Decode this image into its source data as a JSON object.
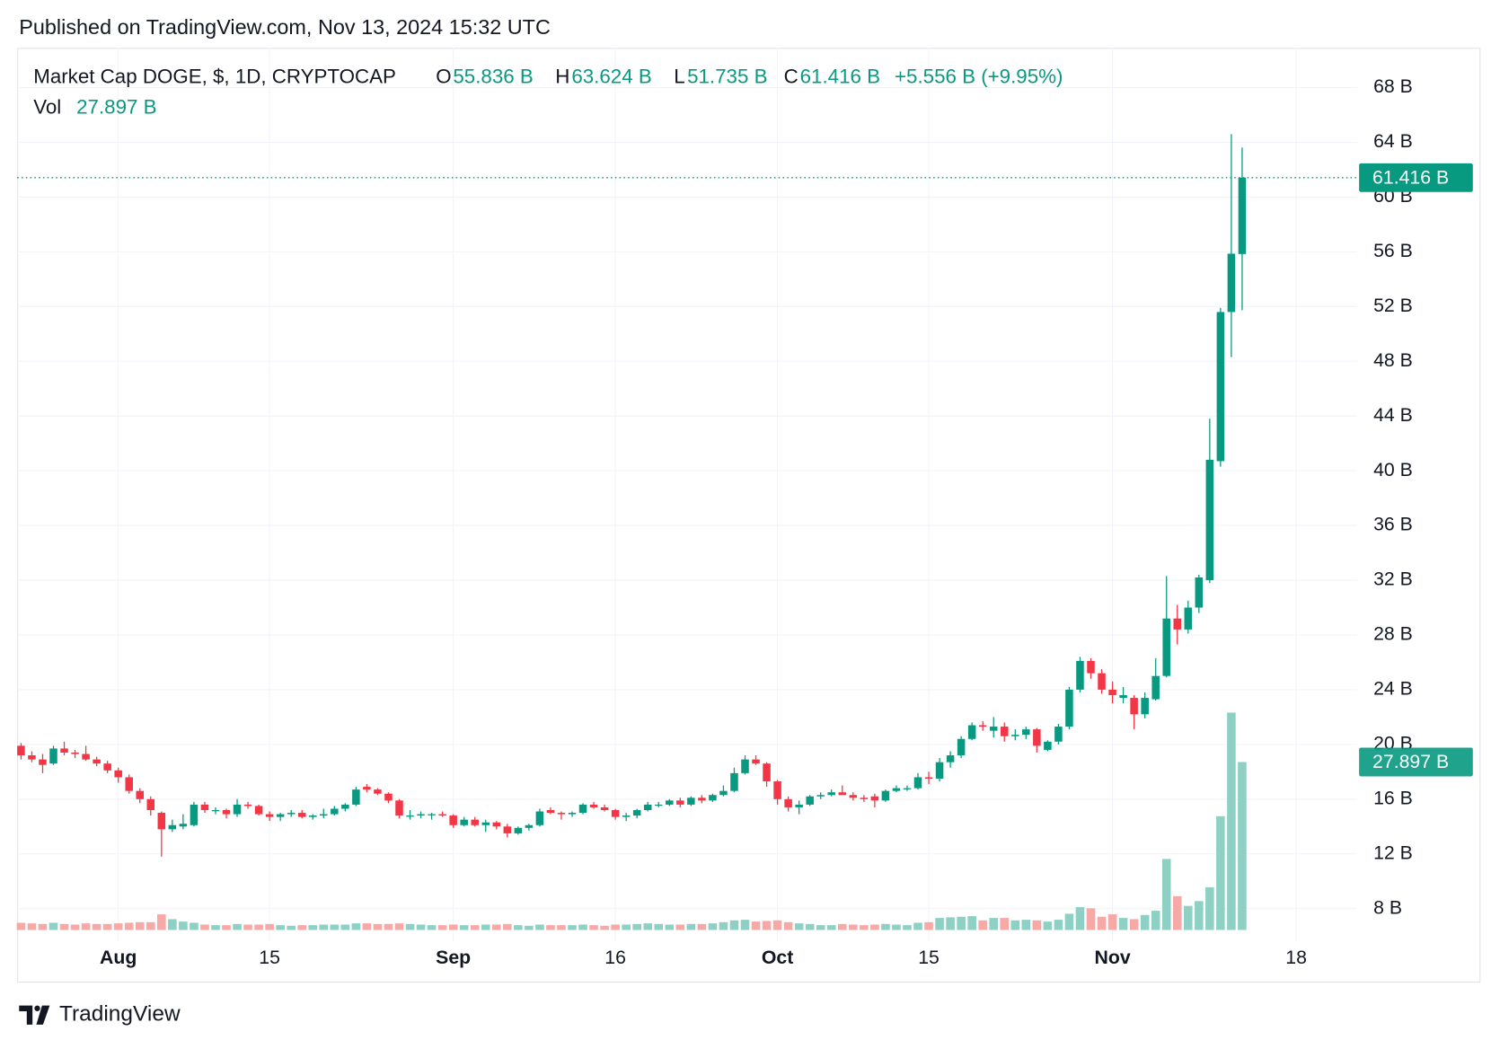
{
  "published": "Published on TradingView.com, Nov 13, 2024 15:32 UTC",
  "brand": "TradingView",
  "chart_data": {
    "type": "candlestick",
    "legend": {
      "symbol": "Market Cap DOGE, $, 1D, CRYPTOCAP",
      "o_key": "O",
      "open": "55.836 B",
      "h_key": "H",
      "high": "63.624 B",
      "l_key": "L",
      "low": "51.735 B",
      "c_key": "C",
      "close": "61.416 B",
      "change": "+5.556 B (+9.95%)",
      "vol_key": "Vol",
      "volume": "27.897 B"
    },
    "x": [
      "2024-07-23",
      "2024-07-24",
      "2024-07-25",
      "2024-07-26",
      "2024-07-27",
      "2024-07-28",
      "2024-07-29",
      "2024-07-30",
      "2024-07-31",
      "2024-08-01",
      "2024-08-02",
      "2024-08-03",
      "2024-08-04",
      "2024-08-05",
      "2024-08-06",
      "2024-08-07",
      "2024-08-08",
      "2024-08-09",
      "2024-08-10",
      "2024-08-11",
      "2024-08-12",
      "2024-08-13",
      "2024-08-14",
      "2024-08-15",
      "2024-08-16",
      "2024-08-17",
      "2024-08-18",
      "2024-08-19",
      "2024-08-20",
      "2024-08-21",
      "2024-08-22",
      "2024-08-23",
      "2024-08-24",
      "2024-08-25",
      "2024-08-26",
      "2024-08-27",
      "2024-08-28",
      "2024-08-29",
      "2024-08-30",
      "2024-08-31",
      "2024-09-01",
      "2024-09-02",
      "2024-09-03",
      "2024-09-04",
      "2024-09-05",
      "2024-09-06",
      "2024-09-07",
      "2024-09-08",
      "2024-09-09",
      "2024-09-10",
      "2024-09-11",
      "2024-09-12",
      "2024-09-13",
      "2024-09-14",
      "2024-09-15",
      "2024-09-16",
      "2024-09-17",
      "2024-09-18",
      "2024-09-19",
      "2024-09-20",
      "2024-09-21",
      "2024-09-22",
      "2024-09-23",
      "2024-09-24",
      "2024-09-25",
      "2024-09-26",
      "2024-09-27",
      "2024-09-28",
      "2024-09-29",
      "2024-09-30",
      "2024-10-01",
      "2024-10-02",
      "2024-10-03",
      "2024-10-04",
      "2024-10-05",
      "2024-10-06",
      "2024-10-07",
      "2024-10-08",
      "2024-10-09",
      "2024-10-10",
      "2024-10-11",
      "2024-10-12",
      "2024-10-13",
      "2024-10-14",
      "2024-10-15",
      "2024-10-16",
      "2024-10-17",
      "2024-10-18",
      "2024-10-19",
      "2024-10-20",
      "2024-10-21",
      "2024-10-22",
      "2024-10-23",
      "2024-10-24",
      "2024-10-25",
      "2024-10-26",
      "2024-10-27",
      "2024-10-28",
      "2024-10-29",
      "2024-10-30",
      "2024-10-31",
      "2024-11-01",
      "2024-11-02",
      "2024-11-03",
      "2024-11-04",
      "2024-11-05",
      "2024-11-06",
      "2024-11-07",
      "2024-11-08",
      "2024-11-09",
      "2024-11-10",
      "2024-11-11",
      "2024-11-12",
      "2024-11-13"
    ],
    "open": [
      19.9,
      19.2,
      18.9,
      18.6,
      19.7,
      19.4,
      19.3,
      18.9,
      18.6,
      18.1,
      17.6,
      16.6,
      16.0,
      15.0,
      13.8,
      14.0,
      14.1,
      15.6,
      15.2,
      15.2,
      14.9,
      15.6,
      15.5,
      14.9,
      14.7,
      14.9,
      15.0,
      14.7,
      14.8,
      14.9,
      15.3,
      15.6,
      16.9,
      16.7,
      16.4,
      15.9,
      14.8,
      14.8,
      14.9,
      14.9,
      14.8,
      14.1,
      14.5,
      14.1,
      14.3,
      14.0,
      13.5,
      13.9,
      14.1,
      15.2,
      15.0,
      14.9,
      15.0,
      15.6,
      15.4,
      15.2,
      14.7,
      14.8,
      15.2,
      15.6,
      15.6,
      15.9,
      15.6,
      16.1,
      15.9,
      16.3,
      16.6,
      17.9,
      18.9,
      18.6,
      17.3,
      16.0,
      15.4,
      15.6,
      16.2,
      16.3,
      16.5,
      16.3,
      16.1,
      16.2,
      15.9,
      16.6,
      16.8,
      16.8,
      17.6,
      17.5,
      18.7,
      19.2,
      20.4,
      21.4,
      21.0,
      21.3,
      20.6,
      20.7,
      21.1,
      19.6,
      20.2,
      21.3,
      24.0,
      26.1,
      25.2,
      24.0,
      23.4,
      23.4,
      22.2,
      23.3,
      25.0,
      29.2,
      28.4,
      30.0,
      32.0,
      40.7,
      51.6,
      55.836
    ],
    "high": [
      20.1,
      19.5,
      19.3,
      19.9,
      20.2,
      19.6,
      19.9,
      19.1,
      18.8,
      18.3,
      17.8,
      16.8,
      16.2,
      15.1,
      14.5,
      14.9,
      15.8,
      15.8,
      15.4,
      15.3,
      16.0,
      15.8,
      15.6,
      15.1,
      15.0,
      15.2,
      15.2,
      14.9,
      15.3,
      15.5,
      15.7,
      16.9,
      17.1,
      16.8,
      16.5,
      16.0,
      15.2,
      15.1,
      15.0,
      15.1,
      14.9,
      14.7,
      14.7,
      14.5,
      14.4,
      14.2,
      14.0,
      14.2,
      15.3,
      15.4,
      15.1,
      15.1,
      15.7,
      15.8,
      15.6,
      15.3,
      15.0,
      15.3,
      15.8,
      15.8,
      16.0,
      16.1,
      16.2,
      16.3,
      16.4,
      17.0,
      18.3,
      19.2,
      19.2,
      18.7,
      17.4,
      16.2,
      15.9,
      16.3,
      16.5,
      16.7,
      17.0,
      16.5,
      16.3,
      16.4,
      16.7,
      17.0,
      17.0,
      17.9,
      18.0,
      19.0,
      19.5,
      20.6,
      21.6,
      21.7,
      22.0,
      21.6,
      21.1,
      21.3,
      21.2,
      20.3,
      21.5,
      24.2,
      26.4,
      26.3,
      25.5,
      24.6,
      24.2,
      23.6,
      23.8,
      26.3,
      32.3,
      30.2,
      30.5,
      32.4,
      43.8,
      51.9,
      64.6,
      63.624
    ],
    "low": [
      18.9,
      18.7,
      17.9,
      18.5,
      19.2,
      19.0,
      18.8,
      18.4,
      17.9,
      17.2,
      16.4,
      15.7,
      14.8,
      11.8,
      13.6,
      13.8,
      14.0,
      15.0,
      14.9,
      14.6,
      14.7,
      15.3,
      14.8,
      14.4,
      14.4,
      14.7,
      14.6,
      14.5,
      14.6,
      14.8,
      15.1,
      15.5,
      16.5,
      16.3,
      15.7,
      14.6,
      14.5,
      14.6,
      14.5,
      14.7,
      13.9,
      14.0,
      14.0,
      13.6,
      13.8,
      13.2,
      13.4,
      13.7,
      14.0,
      14.9,
      14.5,
      14.7,
      14.9,
      15.3,
      15.1,
      14.5,
      14.4,
      14.6,
      15.1,
      15.4,
      15.5,
      15.4,
      15.5,
      15.7,
      15.8,
      16.2,
      16.5,
      17.8,
      18.5,
      16.9,
      15.6,
      15.1,
      14.9,
      15.5,
      16.0,
      16.2,
      16.3,
      15.9,
      15.8,
      15.4,
      15.8,
      16.5,
      16.6,
      16.7,
      17.1,
      17.3,
      18.3,
      19.0,
      20.3,
      21.0,
      20.5,
      20.2,
      20.3,
      20.4,
      19.4,
      19.5,
      20.0,
      21.1,
      23.8,
      24.8,
      23.7,
      23.0,
      23.0,
      21.1,
      21.9,
      23.2,
      24.9,
      27.3,
      28.1,
      29.6,
      31.8,
      40.3,
      48.3,
      51.735
    ],
    "close": [
      19.2,
      18.9,
      18.5,
      19.7,
      19.4,
      19.3,
      18.9,
      18.6,
      18.1,
      17.6,
      16.6,
      16.0,
      15.2,
      13.8,
      14.1,
      14.2,
      15.6,
      15.2,
      15.2,
      14.9,
      15.6,
      15.5,
      14.9,
      14.7,
      14.9,
      15.0,
      14.7,
      14.8,
      14.9,
      15.3,
      15.6,
      16.7,
      16.7,
      16.4,
      15.9,
      14.8,
      14.8,
      14.9,
      14.9,
      14.8,
      14.1,
      14.5,
      14.1,
      14.3,
      14.0,
      13.5,
      13.9,
      14.1,
      15.1,
      15.0,
      14.9,
      15.0,
      15.6,
      15.4,
      15.2,
      14.7,
      14.8,
      15.2,
      15.6,
      15.6,
      15.9,
      15.6,
      16.1,
      15.9,
      16.3,
      16.6,
      17.9,
      18.9,
      18.6,
      17.3,
      16.0,
      15.4,
      15.6,
      16.2,
      16.3,
      16.5,
      16.3,
      16.1,
      16.0,
      15.9,
      16.6,
      16.8,
      16.8,
      17.6,
      17.5,
      18.7,
      19.2,
      20.4,
      21.4,
      21.3,
      21.3,
      20.6,
      20.7,
      21.1,
      19.9,
      20.2,
      21.3,
      24.0,
      26.1,
      25.2,
      24.0,
      23.6,
      23.6,
      22.2,
      23.4,
      25.0,
      29.2,
      28.4,
      30.0,
      32.2,
      40.8,
      51.6,
      55.86,
      61.416
    ],
    "volume": [
      1.2,
      1.1,
      1.0,
      1.2,
      1.0,
      0.9,
      1.1,
      1.0,
      1.0,
      1.1,
      1.2,
      1.3,
      1.3,
      2.6,
      1.8,
      1.4,
      1.2,
      0.9,
      0.8,
      0.8,
      1.0,
      0.9,
      0.9,
      1.0,
      0.8,
      0.7,
      0.8,
      0.8,
      0.9,
      0.9,
      0.9,
      1.1,
      1.1,
      1.0,
      1.0,
      1.1,
      1.0,
      0.9,
      0.8,
      0.8,
      0.9,
      0.8,
      0.8,
      0.9,
      0.9,
      1.0,
      0.8,
      0.7,
      0.9,
      0.8,
      0.8,
      0.8,
      0.9,
      0.8,
      0.7,
      0.9,
      0.9,
      1.0,
      1.1,
      1.0,
      0.9,
      0.9,
      1.0,
      1.0,
      1.1,
      1.3,
      1.6,
      1.7,
      1.4,
      1.5,
      1.6,
      1.3,
      1.1,
      1.0,
      0.8,
      0.8,
      1.0,
      0.9,
      0.8,
      0.9,
      1.0,
      0.9,
      0.8,
      1.2,
      1.3,
      2.0,
      2.1,
      2.2,
      2.3,
      1.6,
      2.0,
      2.0,
      1.6,
      1.7,
      1.6,
      1.4,
      1.7,
      2.7,
      3.8,
      3.6,
      2.2,
      2.6,
      2.0,
      1.8,
      2.5,
      3.2,
      11.8,
      5.6,
      4.0,
      4.8,
      7.1,
      18.9,
      36.1,
      27.897
    ],
    "xlim": [
      "2024-07-23",
      "2024-11-24"
    ],
    "xticks": [
      {
        "value": "2024-08-01",
        "label": "Aug"
      },
      {
        "value": "2024-08-15",
        "label": "15"
      },
      {
        "value": "2024-09-01",
        "label": "Sep"
      },
      {
        "value": "2024-09-16",
        "label": "16"
      },
      {
        "value": "2024-10-01",
        "label": "Oct"
      },
      {
        "value": "2024-10-15",
        "label": "15"
      },
      {
        "value": "2024-11-01",
        "label": "Nov"
      },
      {
        "value": "2024-11-18",
        "label": "18"
      }
    ],
    "ylim": [
      5.6,
      70.9
    ],
    "yticks": [
      {
        "value": 8,
        "label": "8 B"
      },
      {
        "value": 12,
        "label": "12 B"
      },
      {
        "value": 16,
        "label": "16 B"
      },
      {
        "value": 20,
        "label": "20 B"
      },
      {
        "value": 24,
        "label": "24 B"
      },
      {
        "value": 28,
        "label": "28 B"
      },
      {
        "value": 32,
        "label": "32 B"
      },
      {
        "value": 36,
        "label": "36 B"
      },
      {
        "value": 40,
        "label": "40 B"
      },
      {
        "value": 44,
        "label": "44 B"
      },
      {
        "value": 48,
        "label": "48 B"
      },
      {
        "value": 52,
        "label": "52 B"
      },
      {
        "value": 56,
        "label": "56 B"
      },
      {
        "value": 60,
        "label": "60 B"
      },
      {
        "value": 64,
        "label": "64 B"
      },
      {
        "value": 68,
        "label": "68 B"
      }
    ],
    "vlim": [
      0,
      40
    ],
    "grid": true,
    "up_color": "#089981",
    "down_color": "#f23645",
    "volume_up_color": "#8fd0c4",
    "volume_down_color": "#f7a9a7"
  }
}
